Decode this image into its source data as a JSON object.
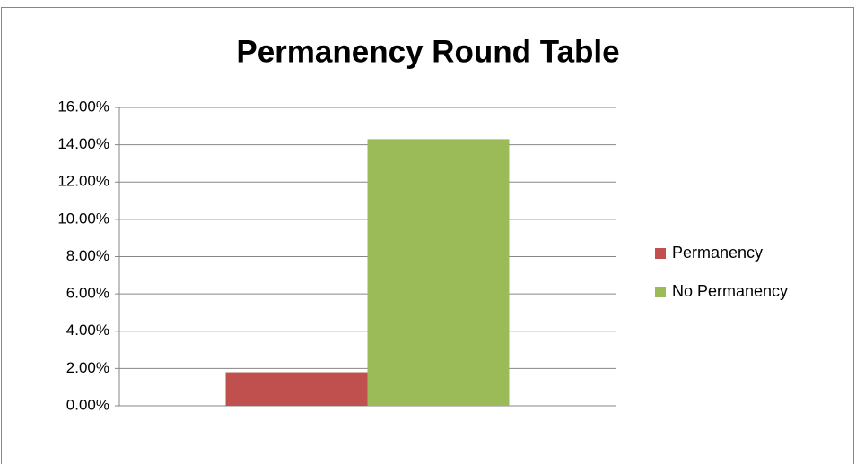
{
  "chart_data": {
    "type": "bar",
    "title": "Permanency Round Table",
    "categories": [
      null
    ],
    "series": [
      {
        "name": "Permanency",
        "color": "#c0504d",
        "values": [
          1.8
        ]
      },
      {
        "name": "No Permanency",
        "color": "#9bbb59",
        "values": [
          14.3
        ]
      }
    ],
    "ylim": [
      0,
      16
    ],
    "yticks": [
      {
        "value": 0,
        "label": "0.00%"
      },
      {
        "value": 2,
        "label": "2.00%"
      },
      {
        "value": 4,
        "label": "4.00%"
      },
      {
        "value": 6,
        "label": "6.00%"
      },
      {
        "value": 8,
        "label": "8.00%"
      },
      {
        "value": 10,
        "label": "10.00%"
      },
      {
        "value": 12,
        "label": "12.00%"
      },
      {
        "value": 14,
        "label": "14.00%"
      },
      {
        "value": 16,
        "label": "16.00%"
      }
    ],
    "grid": true,
    "legend": "right"
  }
}
